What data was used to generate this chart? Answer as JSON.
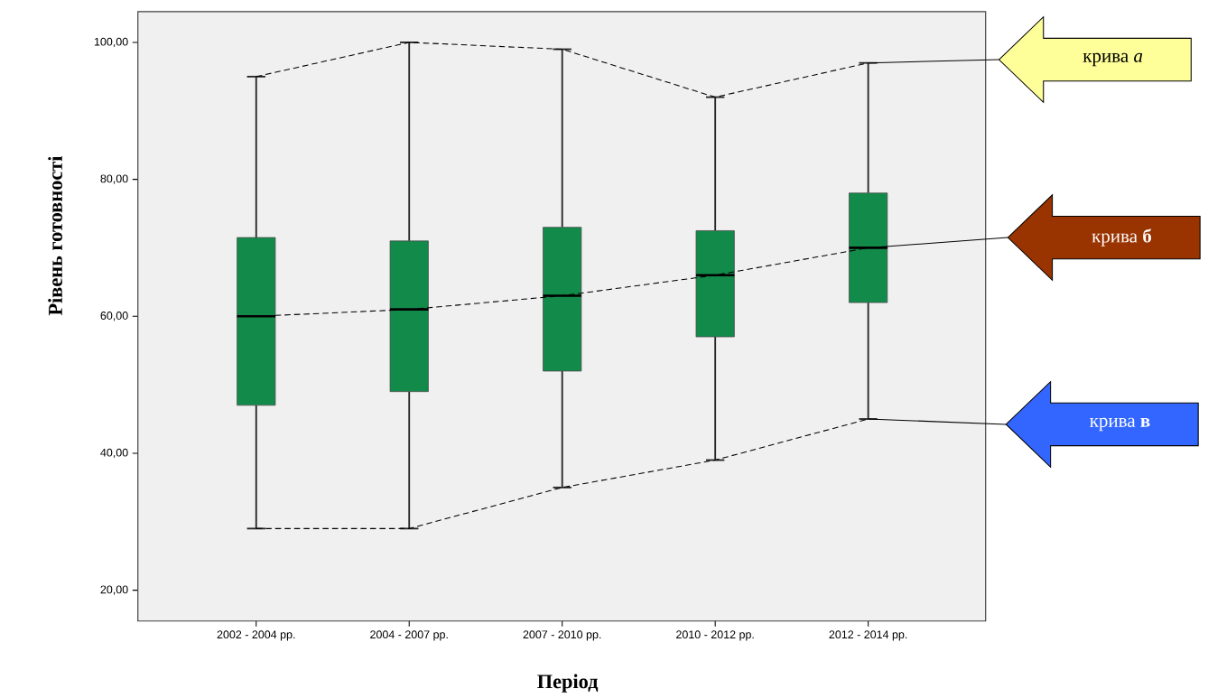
{
  "chart_data": {
    "type": "box",
    "xlabel": "Період",
    "ylabel": "Рівень готовності",
    "categories": [
      "2002 - 2004 рр.",
      "2004 - 2007 рр.",
      "2007 - 2010 рр.",
      "2010 - 2012 рр.",
      "2012 - 2014 рр."
    ],
    "ylim": [
      15.5,
      104.5
    ],
    "yticks": [
      {
        "value": 20,
        "label": "20,00"
      },
      {
        "value": 40,
        "label": "40,00"
      },
      {
        "value": 60,
        "label": "60,00"
      },
      {
        "value": 80,
        "label": "80,00"
      },
      {
        "value": 100,
        "label": "100,00"
      }
    ],
    "series": [
      {
        "type": "box",
        "color": "#118a4a",
        "boxes": [
          {
            "low": 29,
            "q1": 47,
            "median": 60,
            "q3": 71.5,
            "high": 95
          },
          {
            "low": 29,
            "q1": 49,
            "median": 61,
            "q3": 71,
            "high": 100
          },
          {
            "low": 35,
            "q1": 52,
            "median": 63,
            "q3": 73,
            "high": 99
          },
          {
            "low": 39,
            "q1": 57,
            "median": 66,
            "q3": 72.5,
            "high": 92
          },
          {
            "low": 45,
            "q1": 62,
            "median": 70,
            "q3": 78,
            "high": 97
          }
        ]
      },
      {
        "type": "line",
        "name": "крива *а*",
        "color": "#000000",
        "line_style": "dashed",
        "marker": "none",
        "values": [
          95,
          100,
          99,
          92,
          97
        ]
      },
      {
        "type": "line",
        "name": "крива **б**",
        "color": "#000000",
        "line_style": "dashed",
        "marker": "none",
        "values": [
          60,
          61,
          63,
          66,
          70
        ]
      },
      {
        "type": "line",
        "name": "крива **в**",
        "color": "#000000",
        "line_style": "dashed",
        "marker": "none",
        "values": [
          29,
          29,
          35,
          39,
          45
        ]
      }
    ]
  }
}
